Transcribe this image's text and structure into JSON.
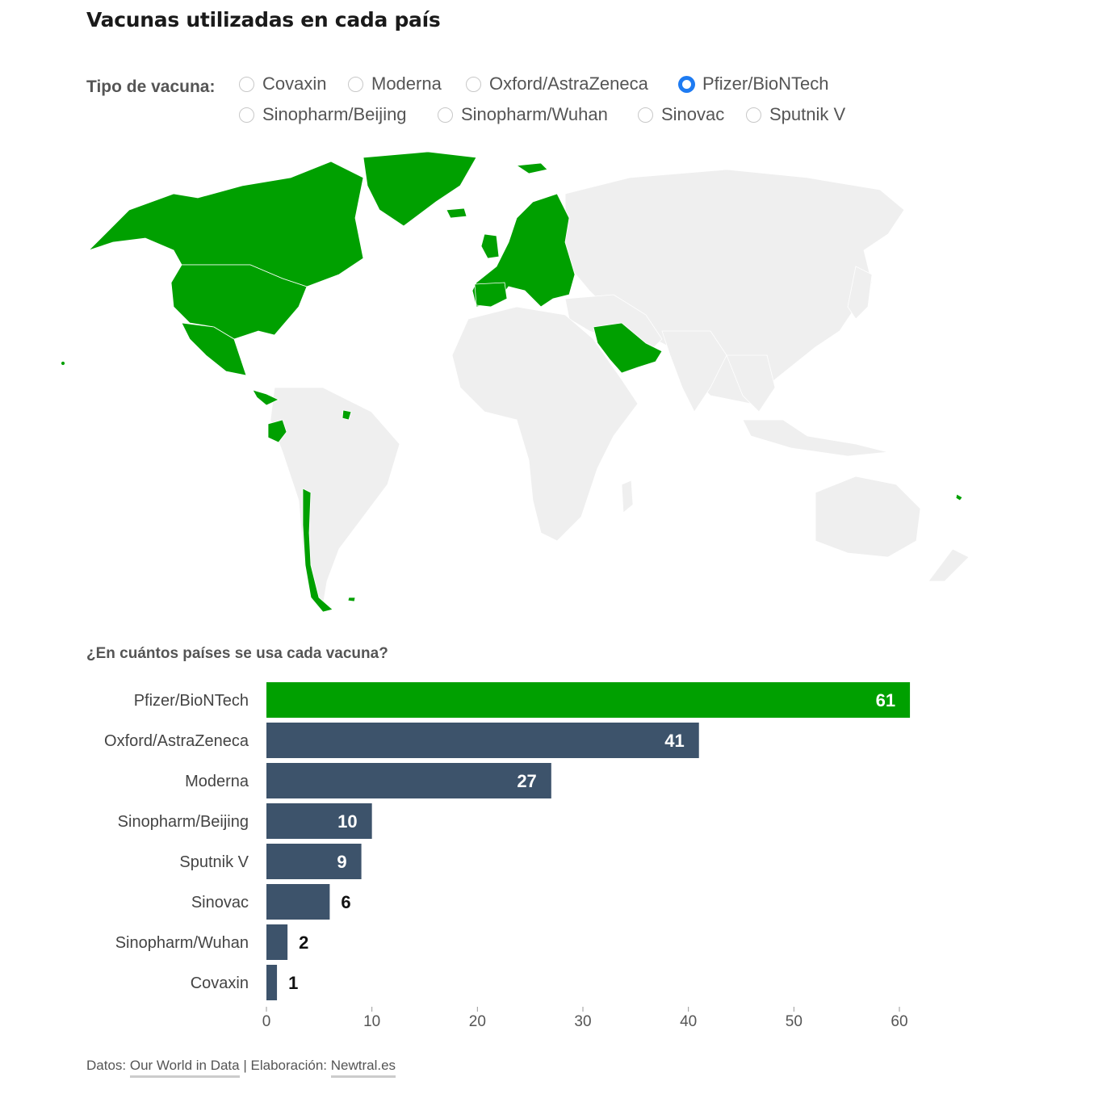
{
  "title": "Vacunas utilizadas en cada país",
  "filter": {
    "label": "Tipo de vacuna:",
    "options": [
      "Covaxin",
      "Moderna",
      "Oxford/AstraZeneca",
      "Pfizer/BioNTech",
      "Sinopharm/Beijing",
      "Sinopharm/Wuhan",
      "Sinovac",
      "Sputnik V"
    ],
    "selected": "Pfizer/BioNTech"
  },
  "map": {
    "highlight_color": "#00a000",
    "base_color": "#f0f0f0",
    "highlighted_regions": [
      "North America",
      "Mexico",
      "Central America",
      "Colombia",
      "Ecuador",
      "Chile",
      "Europe",
      "Saudi Arabia",
      "UAE",
      "Oman",
      "Greenland"
    ]
  },
  "subtitle": "¿En cuántos países se usa cada vacuna?",
  "chart_data": {
    "type": "bar",
    "orientation": "horizontal",
    "categories": [
      "Pfizer/BioNTech",
      "Oxford/AstraZeneca",
      "Moderna",
      "Sinopharm/Beijing",
      "Sputnik V",
      "Sinovac",
      "Sinopharm/Wuhan",
      "Covaxin"
    ],
    "values": [
      61,
      41,
      27,
      10,
      9,
      6,
      2,
      1
    ],
    "xlim": [
      0,
      60
    ],
    "xticks": [
      0,
      10,
      20,
      30,
      40,
      50,
      60
    ],
    "highlight": "Pfizer/BioNTech",
    "highlight_color": "#00a000",
    "bar_color": "#3d536b"
  },
  "footer": {
    "datos_label": "Datos:",
    "datos_link": "Our World in Data",
    "separator": "|",
    "elab_label": "Elaboración:",
    "elab_link": "Newtral.es"
  }
}
